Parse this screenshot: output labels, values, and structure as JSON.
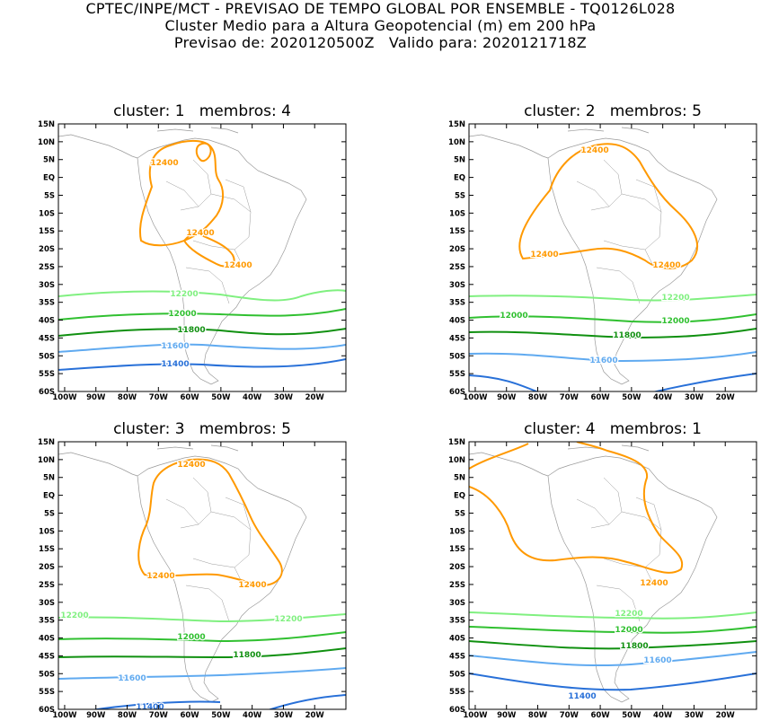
{
  "header": {
    "line1": "CPTEC/INPE/MCT - PREVISAO DE TEMPO GLOBAL POR ENSEMBLE - TQ0126L028",
    "line2": "Cluster Medio para a Altura Geopotencial (m) em 200 hPa",
    "line3": "Previsao de: 2020120500Z   Valido para: 2020121718Z"
  },
  "map": {
    "lat_labels": [
      "15N",
      "10N",
      "5N",
      "EQ",
      "5S",
      "10S",
      "15S",
      "20S",
      "25S",
      "30S",
      "35S",
      "40S",
      "45S",
      "50S",
      "55S",
      "60S"
    ],
    "lon_labels": [
      "100W",
      "90W",
      "80W",
      "70W",
      "60W",
      "50W",
      "40W",
      "30W",
      "20W"
    ],
    "colors": {
      "12400": "#ff9900",
      "12200": "#80f080",
      "12000": "#30c030",
      "11800": "#109010",
      "11600": "#60aaf0",
      "11400": "#2870d8",
      "coast": "#9a9a9a"
    }
  },
  "panels": [
    {
      "title": "cluster: 1   membros: 4",
      "contours": [
        {
          "level": "12400",
          "labels": [
            "12400",
            "12400",
            "12400"
          ]
        },
        {
          "level": "12200",
          "labels": [
            "12200"
          ]
        },
        {
          "level": "12000",
          "labels": [
            "12000"
          ]
        },
        {
          "level": "11800",
          "labels": [
            "11800"
          ]
        },
        {
          "level": "11600",
          "labels": [
            "11600"
          ]
        },
        {
          "level": "11400",
          "labels": [
            "11400"
          ]
        }
      ]
    },
    {
      "title": "cluster: 2   membros: 5",
      "contours": [
        {
          "level": "12400",
          "labels": [
            "12400",
            "12400",
            "12400"
          ]
        },
        {
          "level": "12200",
          "labels": [
            "12200"
          ]
        },
        {
          "level": "12000",
          "labels": [
            "12000",
            "12000"
          ]
        },
        {
          "level": "11800",
          "labels": [
            "11800"
          ]
        },
        {
          "level": "11600",
          "labels": [
            "11600"
          ]
        },
        {
          "level": "11400",
          "labels": []
        }
      ]
    },
    {
      "title": "cluster: 3   membros: 5",
      "contours": [
        {
          "level": "12400",
          "labels": [
            "12400",
            "12400",
            "12400"
          ]
        },
        {
          "level": "12200",
          "labels": [
            "12200",
            "12200"
          ]
        },
        {
          "level": "12000",
          "labels": [
            "12000"
          ]
        },
        {
          "level": "11800",
          "labels": [
            "11800"
          ]
        },
        {
          "level": "11600",
          "labels": [
            "11600"
          ]
        },
        {
          "level": "11400",
          "labels": [
            "11400"
          ]
        }
      ]
    },
    {
      "title": "cluster: 4   membros: 1",
      "contours": [
        {
          "level": "12400",
          "labels": [
            "12400"
          ]
        },
        {
          "level": "12200",
          "labels": [
            "12200"
          ]
        },
        {
          "level": "12000",
          "labels": [
            "12000"
          ]
        },
        {
          "level": "11800",
          "labels": [
            "11800"
          ]
        },
        {
          "level": "11600",
          "labels": [
            "11600"
          ]
        },
        {
          "level": "11400",
          "labels": [
            "11400"
          ]
        }
      ]
    }
  ]
}
